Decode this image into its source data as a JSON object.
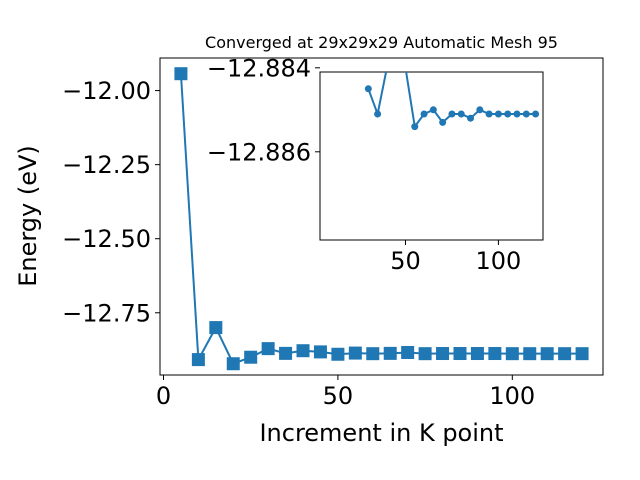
{
  "chart_data": [
    {
      "type": "line",
      "title": "Converged at 29x29x29 Automatic Mesh 95",
      "xlabel": "Increment in K point",
      "ylabel": "Energy (eV)",
      "xlim": [
        -1,
        126
      ],
      "ylim": [
        -12.96,
        -11.89
      ],
      "xticks": [
        0,
        50,
        100
      ],
      "xtick_labels": [
        "0",
        "50",
        "100"
      ],
      "yticks": [
        -12.0,
        -12.25,
        -12.5,
        -12.75
      ],
      "ytick_labels": [
        "−12.00",
        "−12.25",
        "−12.50",
        "−12.75"
      ],
      "marker": "square",
      "color": "#1f77b4",
      "series": [
        {
          "x": [
            5,
            10,
            15,
            20,
            25,
            30,
            35,
            40,
            45,
            50,
            55,
            60,
            65,
            70,
            75,
            80,
            85,
            90,
            95,
            100,
            105,
            110,
            115,
            120
          ],
          "y": [
            -11.943,
            -12.908,
            -12.8,
            -12.922,
            -12.9,
            -12.871,
            -12.887,
            -12.878,
            -12.882,
            -12.89,
            -12.886,
            -12.888,
            -12.887,
            -12.884,
            -12.888,
            -12.8875,
            -12.8875,
            -12.8875,
            -12.8875,
            -12.888,
            -12.888,
            -12.888,
            -12.888,
            -12.888
          ]
        }
      ]
    },
    {
      "type": "line",
      "role": "inset",
      "xlim": [
        4,
        124
      ],
      "ylim": [
        -12.8881,
        -12.8841
      ],
      "xticks": [
        50,
        100
      ],
      "xtick_labels": [
        "50",
        "100"
      ],
      "yticks": [
        -12.886,
        -12.884
      ],
      "ytick_labels": [
        "−12.886",
        "−12.884"
      ],
      "marker": "circle",
      "color": "#1f77b4",
      "series": [
        {
          "x": [
            30,
            35,
            40,
            45,
            50,
            55,
            60,
            65,
            70,
            75,
            80,
            85,
            90,
            95,
            100,
            105,
            110,
            115,
            120
          ],
          "y": [
            -12.8845,
            -12.8851,
            -12.884,
            -12.884,
            -12.884,
            -12.8854,
            -12.8851,
            -12.885,
            -12.8853,
            -12.8851,
            -12.8851,
            -12.8852,
            -12.885,
            -12.8851,
            -12.8851,
            -12.8851,
            -12.8851,
            -12.8851,
            -12.8851
          ]
        }
      ]
    }
  ]
}
